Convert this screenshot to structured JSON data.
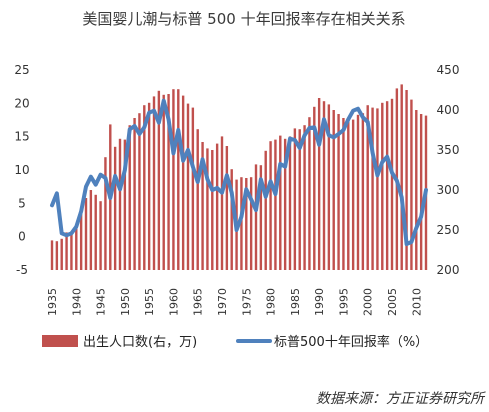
{
  "chart_data": {
    "type": "bar+line",
    "title": "美国婴儿潮与标普 500 十年回报率存在相关关系",
    "source": "数据来源：方正证券研究所",
    "x_tick_labels": [
      "1935",
      "1940",
      "1945",
      "1950",
      "1955",
      "1960",
      "1965",
      "1970",
      "1975",
      "1980",
      "1985",
      "1990",
      "1995",
      "2000",
      "2005",
      "2010"
    ],
    "left_axis": {
      "ticks": [
        "-5",
        "0",
        "5",
        "10",
        "15",
        "20",
        "25"
      ],
      "range": [
        -5,
        25
      ]
    },
    "right_axis": {
      "ticks": [
        "200",
        "250",
        "300",
        "350",
        "400",
        "450"
      ],
      "range": [
        200,
        450
      ]
    },
    "x": [
      1935,
      1936,
      1937,
      1938,
      1939,
      1940,
      1941,
      1942,
      1943,
      1944,
      1945,
      1946,
      1947,
      1948,
      1949,
      1950,
      1951,
      1952,
      1953,
      1954,
      1955,
      1956,
      1957,
      1958,
      1959,
      1960,
      1961,
      1962,
      1963,
      1964,
      1965,
      1966,
      1967,
      1968,
      1969,
      1970,
      1971,
      1972,
      1973,
      1974,
      1975,
      1976,
      1977,
      1978,
      1979,
      1980,
      1981,
      1982,
      1983,
      1984,
      1985,
      1986,
      1987,
      1988,
      1989,
      1990,
      1991,
      1992,
      1993,
      1994,
      1995,
      1996,
      1997,
      1998,
      1999,
      2000,
      2001,
      2002,
      2003,
      2004,
      2005,
      2006,
      2007,
      2008,
      2009,
      2010,
      2011,
      2012
    ],
    "series": [
      {
        "name": "出生人口数(右，万)",
        "type": "bar",
        "axis": "right",
        "color": "#c0504d",
        "values": [
          237,
          236,
          239,
          247,
          247,
          256,
          270,
          290,
          300,
          294,
          286,
          341,
          382,
          354,
          364,
          363,
          381,
          390,
          396,
          406,
          409,
          417,
          424,
          419,
          420,
          426,
          426,
          418,
          408,
          403,
          376,
          360,
          352,
          350,
          358,
          367,
          355,
          326,
          313,
          316,
          315,
          316,
          332,
          331,
          349,
          361,
          363,
          368,
          364,
          367,
          377,
          376,
          381,
          391,
          404,
          415,
          411,
          407,
          400,
          395,
          390,
          389,
          388,
          394,
          396,
          406,
          403,
          402,
          409,
          411,
          414,
          427,
          432,
          425,
          413,
          400,
          395,
          393
        ]
      },
      {
        "name": "标普500十年回报率（%）",
        "type": "line",
        "axis": "left",
        "color": "#4f81bd",
        "values": [
          4.7,
          6.5,
          0.5,
          0.2,
          0.5,
          1.5,
          3.8,
          7.5,
          9.0,
          7.8,
          9.3,
          8.8,
          5.8,
          9.1,
          7.1,
          10.0,
          16.1,
          16.6,
          15.4,
          16.4,
          18.6,
          18.9,
          17.1,
          20.4,
          17.6,
          12.5,
          16.0,
          11.4,
          13.0,
          10.5,
          8.2,
          11.6,
          8.6,
          7.0,
          7.3,
          6.6,
          9.2,
          6.6,
          1.0,
          3.0,
          7.1,
          5.6,
          4.0,
          8.6,
          6.0,
          8.3,
          6.4,
          10.9,
          10.5,
          14.7,
          14.5,
          13.3,
          15.2,
          16.3,
          16.4,
          13.8,
          17.6,
          15.2,
          14.9,
          15.4,
          16.0,
          17.6,
          18.9,
          19.2,
          17.9,
          17.2,
          12.6,
          9.2,
          11.2,
          12.0,
          9.6,
          8.4,
          5.9,
          -1.1,
          -0.8,
          1.3,
          3.0,
          7.0
        ]
      }
    ]
  }
}
